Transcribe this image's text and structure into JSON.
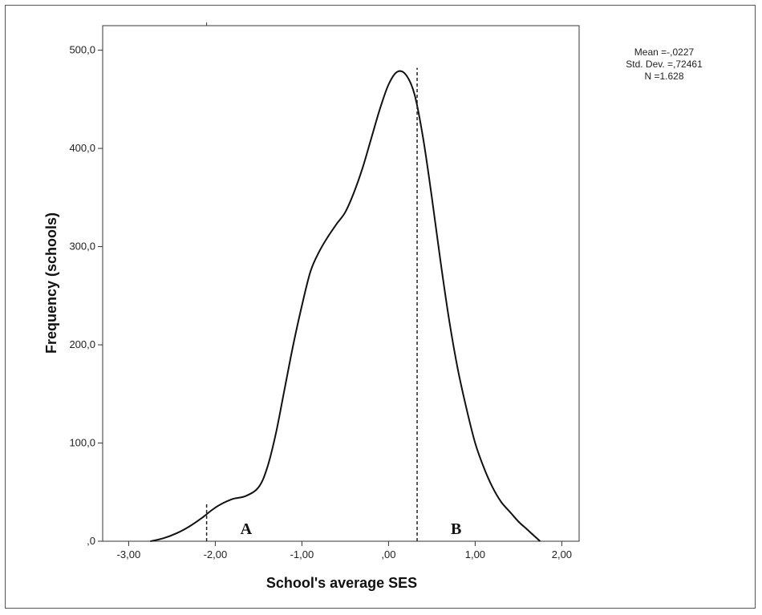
{
  "chart_data": {
    "type": "line",
    "xlabel": "School's average SES",
    "ylabel": "Frequency (schools)",
    "xlim": [
      -3.3,
      2.2
    ],
    "ylim": [
      0,
      525
    ],
    "x_ticks": [
      {
        "value": -3,
        "label": "-3,00"
      },
      {
        "value": -2,
        "label": "-2,00"
      },
      {
        "value": -1,
        "label": "-1,00"
      },
      {
        "value": 0,
        "label": ",00"
      },
      {
        "value": 1,
        "label": "1,00"
      },
      {
        "value": 2,
        "label": "2,00"
      }
    ],
    "y_ticks": [
      {
        "value": 0,
        "label": ",0"
      },
      {
        "value": 100,
        "label": "100,0"
      },
      {
        "value": 200,
        "label": "200,0"
      },
      {
        "value": 300,
        "label": "300,0"
      },
      {
        "value": 400,
        "label": "400,0"
      },
      {
        "value": 500,
        "label": "500,0"
      }
    ],
    "series": [
      {
        "x": [
          -2.75,
          -2.6,
          -2.45,
          -2.3,
          -2.15,
          -2.05,
          -1.95,
          -1.8,
          -1.65,
          -1.5,
          -1.4,
          -1.3,
          -1.2,
          -1.1,
          -1.0,
          -0.9,
          -0.8,
          -0.7,
          -0.6,
          -0.5,
          -0.4,
          -0.3,
          -0.2,
          -0.1,
          0.0,
          0.1,
          0.2,
          0.3,
          0.4,
          0.5,
          0.6,
          0.7,
          0.8,
          0.9,
          1.0,
          1.1,
          1.2,
          1.3,
          1.4,
          1.5,
          1.6,
          1.75
        ],
        "y": [
          0,
          3,
          8,
          15,
          24,
          31,
          37,
          43,
          46,
          55,
          75,
          110,
          155,
          200,
          240,
          275,
          295,
          310,
          323,
          335,
          355,
          380,
          410,
          440,
          465,
          478,
          475,
          455,
          410,
          350,
          285,
          225,
          175,
          135,
          100,
          75,
          55,
          40,
          30,
          20,
          12,
          0
        ]
      }
    ],
    "reference_lines": [
      {
        "x": -2.1,
        "label": "A",
        "y_from": 0,
        "y_to": 38
      },
      {
        "x": 0.33,
        "label": "B",
        "y_from": 0,
        "y_to": 482
      }
    ],
    "top_tick_x": -2.1,
    "stats": [
      "Mean =-,0227",
      "Std. Dev. =,72461",
      "N =1.628"
    ]
  }
}
